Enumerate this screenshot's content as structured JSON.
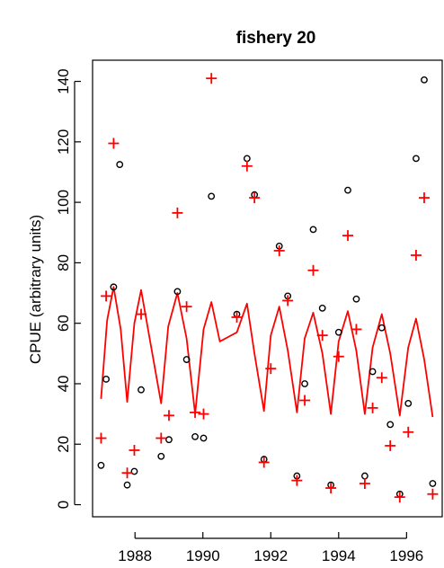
{
  "chart_data": {
    "type": "scatter",
    "title": "fishery 20",
    "xlabel": "",
    "ylabel": "CPUE (arbitrary units)",
    "xlim": [
      1986.75,
      1997.05
    ],
    "ylim": [
      -4,
      147
    ],
    "x_ticks": [
      1988,
      1990,
      1992,
      1994,
      1996
    ],
    "x_tick_labels": [
      "1988",
      "1990",
      "1992",
      "1994",
      "1996"
    ],
    "y_ticks": [
      0,
      20,
      40,
      60,
      80,
      100,
      120,
      140
    ],
    "y_tick_labels": [
      "0",
      "20",
      "40",
      "60",
      "80",
      "100",
      "120",
      "140"
    ],
    "grid": false,
    "colors": {
      "observed": "#000000",
      "expected": "#ff0000",
      "line": "#ff0000"
    },
    "series": [
      {
        "style": "open-circle",
        "points": [
          [
            1987.0,
            13
          ],
          [
            1987.15,
            41.5
          ],
          [
            1987.37,
            72
          ],
          [
            1987.55,
            112.5
          ],
          [
            1987.77,
            6.5
          ],
          [
            1987.98,
            11
          ],
          [
            1988.18,
            38
          ],
          [
            1988.77,
            16
          ],
          [
            1989.0,
            21.5
          ],
          [
            1989.25,
            70.5
          ],
          [
            1989.52,
            48
          ],
          [
            1989.77,
            22.5
          ],
          [
            1990.02,
            22
          ],
          [
            1990.25,
            102
          ],
          [
            1991.0,
            63
          ],
          [
            1991.3,
            114.5
          ],
          [
            1991.52,
            102.5
          ],
          [
            1991.8,
            15
          ],
          [
            1992.25,
            85.5
          ],
          [
            1992.5,
            69
          ],
          [
            1992.77,
            9.5
          ],
          [
            1993.0,
            40
          ],
          [
            1993.25,
            91
          ],
          [
            1993.52,
            65
          ],
          [
            1993.77,
            6.5
          ],
          [
            1994.0,
            57
          ],
          [
            1994.27,
            104
          ],
          [
            1994.52,
            68
          ],
          [
            1994.77,
            9.5
          ],
          [
            1995.0,
            44
          ],
          [
            1995.27,
            58.5
          ],
          [
            1995.52,
            26.5
          ],
          [
            1995.8,
            3.5
          ],
          [
            1996.05,
            33.5
          ],
          [
            1996.28,
            114.5
          ],
          [
            1996.52,
            140.5
          ],
          [
            1996.77,
            7
          ]
        ]
      },
      {
        "style": "plus",
        "points": [
          [
            1987.0,
            22
          ],
          [
            1987.15,
            69
          ],
          [
            1987.37,
            119.5
          ],
          [
            1987.77,
            10.5
          ],
          [
            1987.98,
            18
          ],
          [
            1988.18,
            63
          ],
          [
            1988.77,
            22
          ],
          [
            1989.0,
            29.5
          ],
          [
            1989.25,
            96.5
          ],
          [
            1989.52,
            65.5
          ],
          [
            1989.77,
            30.5
          ],
          [
            1990.02,
            30
          ],
          [
            1990.25,
            141
          ],
          [
            1991.0,
            62
          ],
          [
            1991.3,
            112
          ],
          [
            1991.52,
            101.5
          ],
          [
            1991.8,
            14
          ],
          [
            1992.0,
            45
          ],
          [
            1992.25,
            84
          ],
          [
            1992.5,
            67.5
          ],
          [
            1992.77,
            8
          ],
          [
            1993.0,
            34.5
          ],
          [
            1993.25,
            77.5
          ],
          [
            1993.52,
            56
          ],
          [
            1993.77,
            5.5
          ],
          [
            1994.0,
            49
          ],
          [
            1994.27,
            89
          ],
          [
            1994.52,
            58
          ],
          [
            1994.77,
            7
          ],
          [
            1995.0,
            32
          ],
          [
            1995.27,
            42
          ],
          [
            1995.52,
            19.5
          ],
          [
            1995.8,
            2.5
          ],
          [
            1996.05,
            24
          ],
          [
            1996.28,
            82.5
          ],
          [
            1996.52,
            101.5
          ],
          [
            1996.77,
            3.5
          ]
        ]
      },
      {
        "style": "line",
        "points": [
          [
            1987.0,
            35
          ],
          [
            1987.18,
            61
          ],
          [
            1987.37,
            72
          ],
          [
            1987.58,
            58
          ],
          [
            1987.77,
            34
          ],
          [
            1987.98,
            60
          ],
          [
            1988.18,
            71
          ],
          [
            1988.4,
            57
          ],
          [
            1988.77,
            33.5
          ],
          [
            1988.98,
            59
          ],
          [
            1989.25,
            70
          ],
          [
            1989.52,
            55
          ],
          [
            1989.77,
            30
          ],
          [
            1990.02,
            58
          ],
          [
            1990.25,
            67
          ],
          [
            1990.5,
            54
          ],
          [
            1991.0,
            57
          ],
          [
            1991.3,
            66.5
          ],
          [
            1991.52,
            50
          ],
          [
            1991.8,
            31
          ],
          [
            1992.0,
            56
          ],
          [
            1992.25,
            65.5
          ],
          [
            1992.5,
            51
          ],
          [
            1992.77,
            30.5
          ],
          [
            1993.0,
            55
          ],
          [
            1993.25,
            63.5
          ],
          [
            1993.52,
            50
          ],
          [
            1993.77,
            30
          ],
          [
            1994.0,
            54
          ],
          [
            1994.27,
            64
          ],
          [
            1994.52,
            51
          ],
          [
            1994.77,
            30
          ],
          [
            1995.0,
            52
          ],
          [
            1995.27,
            63
          ],
          [
            1995.52,
            50
          ],
          [
            1995.8,
            29.5
          ],
          [
            1996.05,
            52
          ],
          [
            1996.28,
            61.5
          ],
          [
            1996.52,
            48
          ],
          [
            1996.77,
            29
          ]
        ]
      }
    ]
  }
}
